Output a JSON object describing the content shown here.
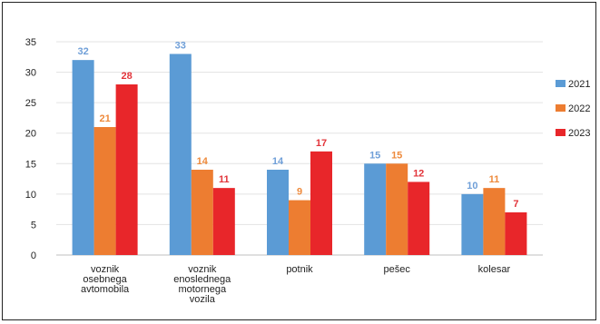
{
  "chart_data": {
    "type": "bar",
    "title": "",
    "xlabel": "",
    "ylabel": "",
    "ylim": [
      0,
      35
    ],
    "yticks": [
      0,
      5,
      10,
      15,
      20,
      25,
      30,
      35
    ],
    "grid": true,
    "legend_position": "right",
    "categories": [
      [
        "voznik",
        "osebnega",
        "avtomobila"
      ],
      [
        "voznik",
        "enoslednega",
        "motornega",
        "vozila"
      ],
      [
        "potnik"
      ],
      [
        "pešec"
      ],
      [
        "kolesar"
      ]
    ],
    "series": [
      {
        "name": "2021",
        "color": "#5b9bd5",
        "label_color": "#6f9fd8",
        "values": [
          32,
          33,
          14,
          15,
          10
        ]
      },
      {
        "name": "2022",
        "color": "#ed7d31",
        "label_color": "#ee8a3c",
        "values": [
          21,
          14,
          9,
          15,
          11
        ]
      },
      {
        "name": "2023",
        "color": "#e8262a",
        "label_color": "#e2343a",
        "values": [
          28,
          11,
          17,
          12,
          7
        ]
      }
    ]
  }
}
